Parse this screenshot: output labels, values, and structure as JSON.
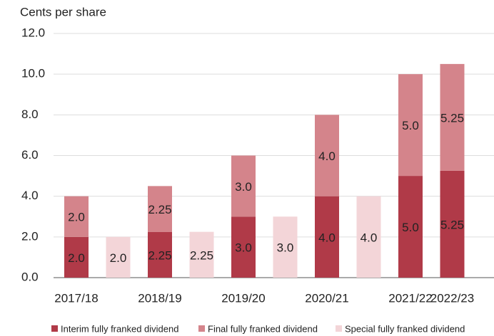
{
  "chart_data": {
    "type": "bar",
    "stacked": true,
    "y_label": "Cents per share",
    "categories": [
      "2017/18",
      "2018/19",
      "2019/20",
      "2020/21",
      "2021/22",
      "2022/23"
    ],
    "series": [
      {
        "name": "Interim fully franked dividend",
        "color": "#b03a48",
        "stack": "regular",
        "values": [
          2,
          2.25,
          3,
          4,
          5,
          5.25
        ],
        "value_labels": [
          "2.0",
          "2.25",
          "3.0",
          "4.0",
          "5.0",
          "5.25"
        ]
      },
      {
        "name": "Final fully franked dividend",
        "color": "#d4848b",
        "stack": "regular",
        "values": [
          2,
          2.25,
          3,
          4,
          5,
          5.25
        ],
        "value_labels": [
          "2.0",
          "2.25",
          "3.0",
          "4.0",
          "5.0",
          "5.25"
        ]
      },
      {
        "name": "Special fully franked dividend",
        "color": "#f3d5d8",
        "stack": "special",
        "values": [
          2,
          2.25,
          3,
          4,
          null,
          null
        ],
        "value_labels": [
          "2.0",
          "2.25",
          "3.0",
          "4.0",
          null,
          null
        ]
      }
    ],
    "ylim": [
      0,
      12
    ],
    "yticks": [
      {
        "value": 0,
        "label": "0.0"
      },
      {
        "value": 2,
        "label": "2.0"
      },
      {
        "value": 4,
        "label": "4.0"
      },
      {
        "value": 6,
        "label": "6.0"
      },
      {
        "value": 8,
        "label": "8.0"
      },
      {
        "value": 10,
        "label": "10.0"
      },
      {
        "value": 12,
        "label": "12.0"
      }
    ],
    "grid": true,
    "legend": "bottom"
  }
}
